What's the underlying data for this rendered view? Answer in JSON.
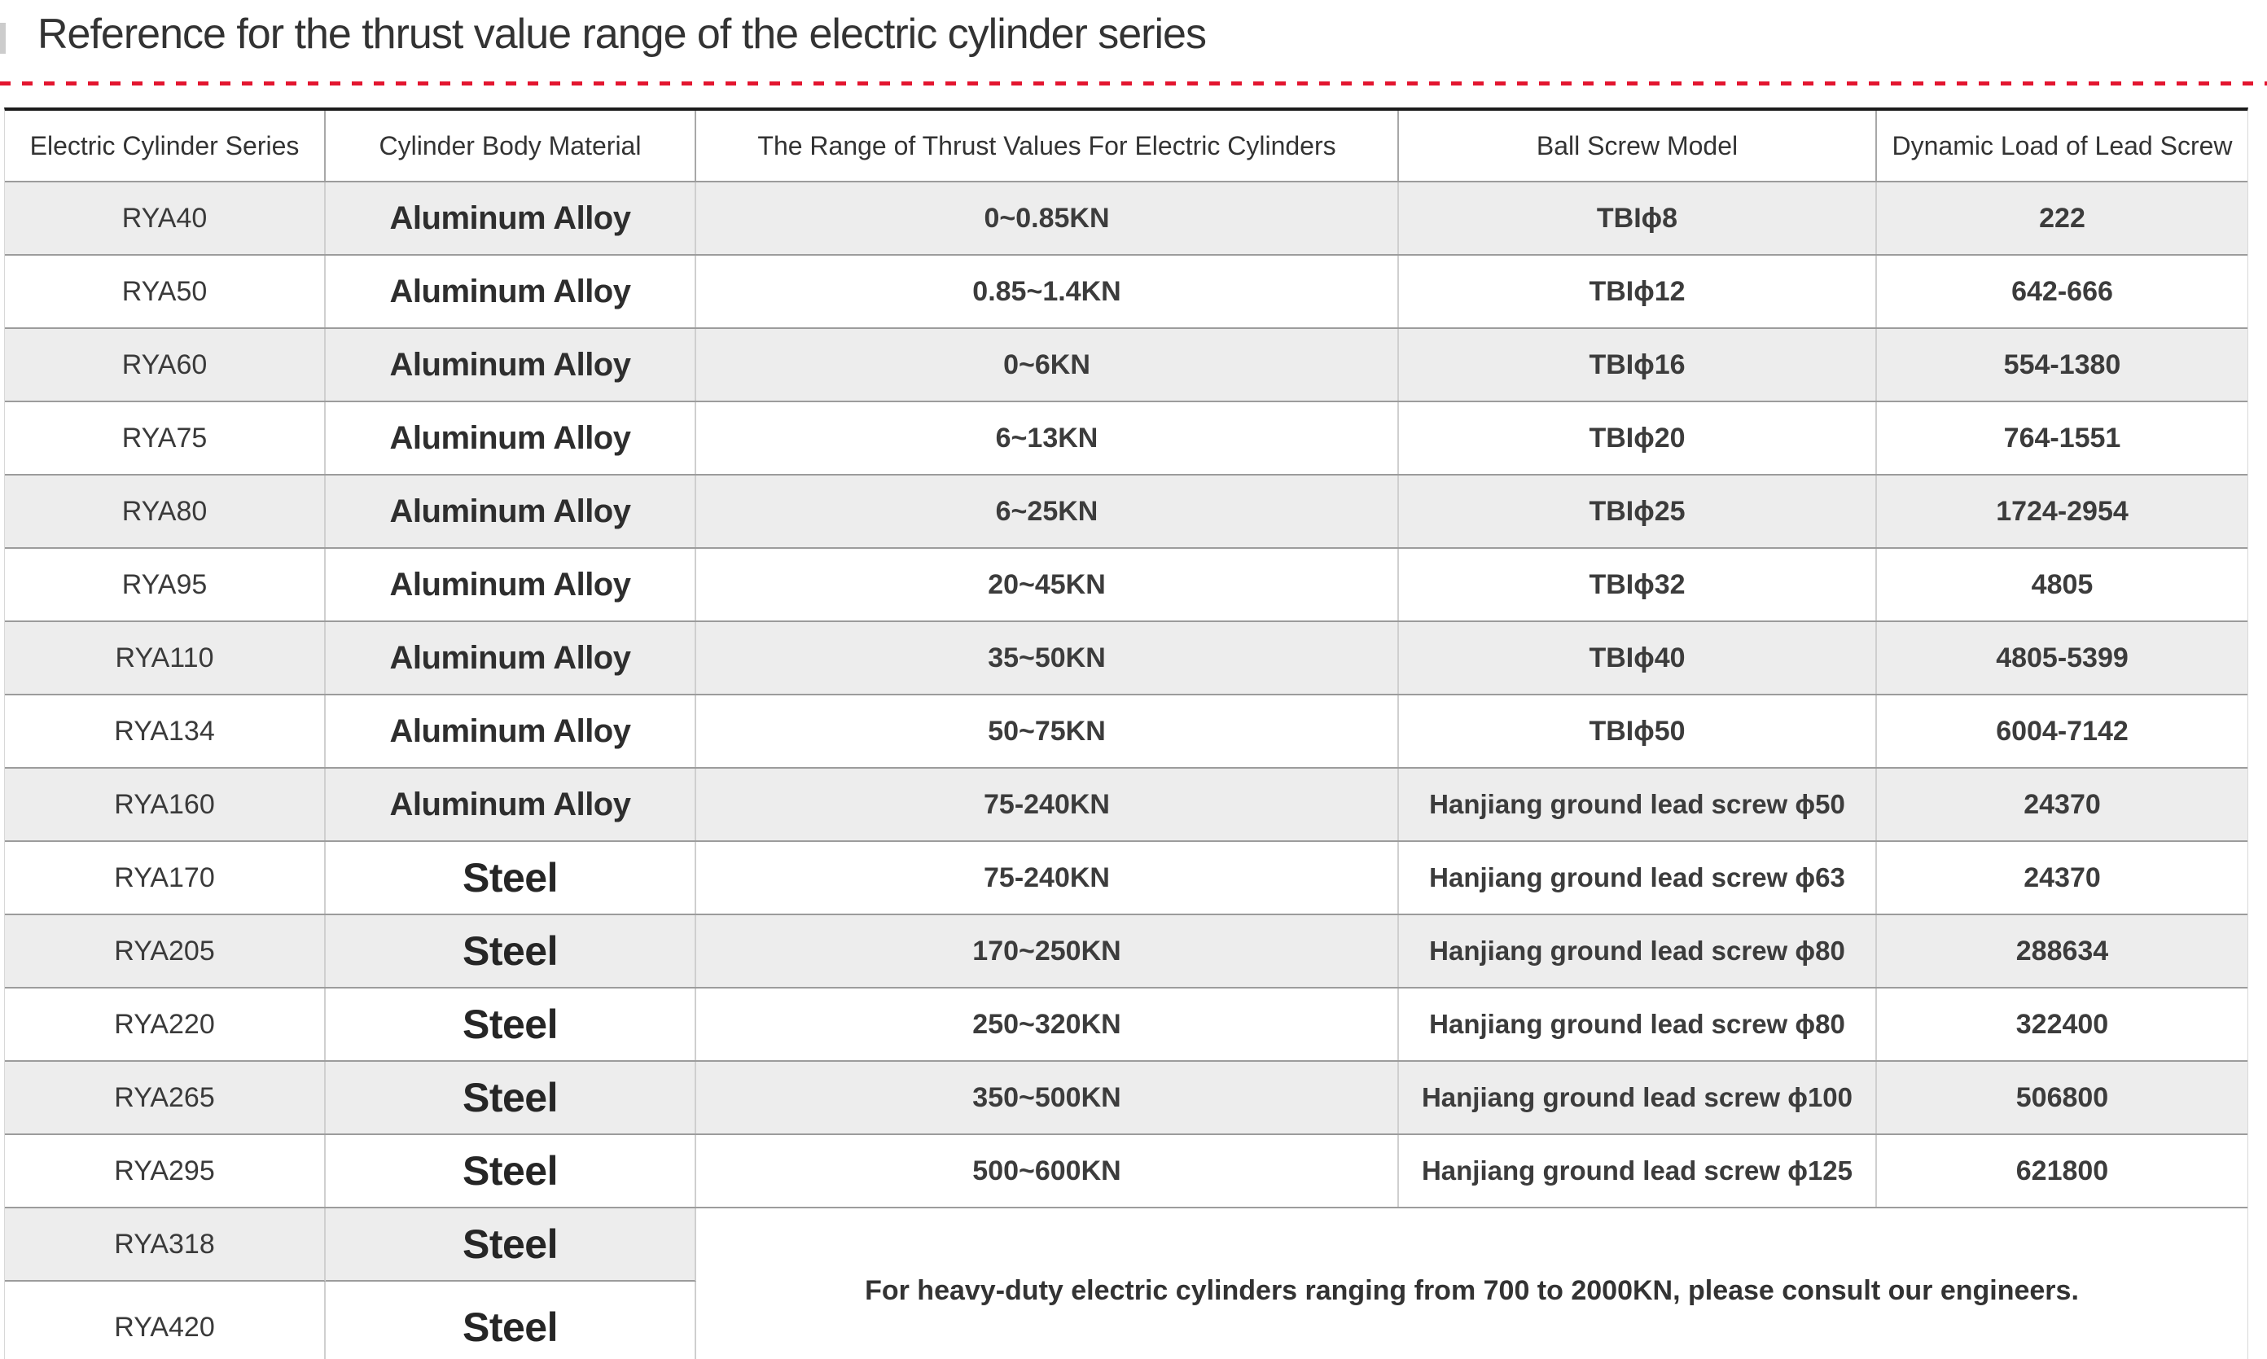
{
  "page": {
    "title": "Reference for the thrust value range of the electric cylinder series",
    "accent_color": "#e3152f",
    "stripe_color": "#ededed"
  },
  "table": {
    "headers": [
      "Electric Cylinder Series",
      "Cylinder Body Material",
      "The Range of Thrust Values For Electric Cylinders",
      "Ball Screw Model",
      "Dynamic Load of Lead Screw"
    ],
    "rows": [
      {
        "series": "RYA40",
        "material": "Aluminum Alloy",
        "thrust": "0~0.85KN",
        "screw": "TBIϕ8",
        "load": "222"
      },
      {
        "series": "RYA50",
        "material": "Aluminum Alloy",
        "thrust": "0.85~1.4KN",
        "screw": "TBIϕ12",
        "load": "642-666"
      },
      {
        "series": "RYA60",
        "material": "Aluminum Alloy",
        "thrust": "0~6KN",
        "screw": "TBIϕ16",
        "load": "554-1380"
      },
      {
        "series": "RYA75",
        "material": "Aluminum Alloy",
        "thrust": "6~13KN",
        "screw": "TBIϕ20",
        "load": "764-1551"
      },
      {
        "series": "RYA80",
        "material": "Aluminum Alloy",
        "thrust": "6~25KN",
        "screw": "TBIϕ25",
        "load": "1724-2954"
      },
      {
        "series": "RYA95",
        "material": "Aluminum Alloy",
        "thrust": "20~45KN",
        "screw": "TBIϕ32",
        "load": "4805"
      },
      {
        "series": "RYA110",
        "material": "Aluminum Alloy",
        "thrust": "35~50KN",
        "screw": "TBIϕ40",
        "load": "4805-5399"
      },
      {
        "series": "RYA134",
        "material": "Aluminum Alloy",
        "thrust": "50~75KN",
        "screw": "TBIϕ50",
        "load": "6004-7142"
      },
      {
        "series": "RYA160",
        "material": "Aluminum Alloy",
        "thrust": "75-240KN",
        "screw": "Hanjiang ground lead screw ϕ50",
        "load": "24370"
      },
      {
        "series": "RYA170",
        "material": "Steel",
        "thrust": "75-240KN",
        "screw": "Hanjiang ground lead screw ϕ63",
        "load": "24370"
      },
      {
        "series": "RYA205",
        "material": "Steel",
        "thrust": "170~250KN",
        "screw": "Hanjiang ground lead screw ϕ80",
        "load": "288634"
      },
      {
        "series": "RYA220",
        "material": "Steel",
        "thrust": "250~320KN",
        "screw": "Hanjiang ground lead screw ϕ80",
        "load": "322400"
      },
      {
        "series": "RYA265",
        "material": "Steel",
        "thrust": "350~500KN",
        "screw": "Hanjiang ground lead screw ϕ100",
        "load": "506800"
      },
      {
        "series": "RYA295",
        "material": "Steel",
        "thrust": "500~600KN",
        "screw": "Hanjiang ground lead screw ϕ125",
        "load": "621800"
      }
    ],
    "extra_rows": [
      {
        "series": "RYA318",
        "material": "Steel"
      },
      {
        "series": "RYA420",
        "material": "Steel"
      }
    ],
    "note": "For heavy-duty electric cylinders ranging from 700 to 2000KN, please consult our engineers."
  }
}
